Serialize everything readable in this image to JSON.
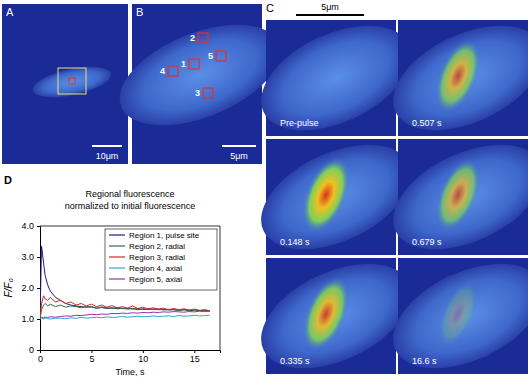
{
  "chart_data": {
    "type": "line",
    "panel_label": "D",
    "title": "Regional fluorescence",
    "subtitle": "normalized to initial fluorescence",
    "x_label": "Time, s",
    "y_label": "F/F₀",
    "x": [
      0,
      0.15,
      0.35,
      0.5,
      0.75,
      1,
      1.5,
      2,
      2.5,
      3,
      3.5,
      4,
      4.5,
      5,
      5.5,
      6,
      6.5,
      7,
      7.5,
      8,
      8.5,
      9,
      9.5,
      10,
      10.5,
      11,
      11.5,
      12,
      12.5,
      13,
      13.5,
      14,
      14.5,
      15,
      15.5,
      16,
      16.5
    ],
    "series": [
      {
        "name": "Region 1, pulse site",
        "color": "#1f1f7a",
        "values": [
          1.0,
          3.35,
          2.8,
          2.4,
          2.1,
          1.9,
          1.7,
          1.6,
          1.5,
          1.45,
          1.42,
          1.4,
          1.38,
          1.4,
          1.35,
          1.37,
          1.34,
          1.36,
          1.33,
          1.35,
          1.32,
          1.34,
          1.3,
          1.33,
          1.31,
          1.32,
          1.3,
          1.31,
          1.29,
          1.3,
          1.28,
          1.3,
          1.27,
          1.29,
          1.27,
          1.28,
          1.26
        ]
      },
      {
        "name": "Region 2, radial",
        "color": "#2f6f3f",
        "values": [
          1.0,
          1.3,
          1.45,
          1.5,
          1.42,
          1.48,
          1.4,
          1.45,
          1.38,
          1.42,
          1.4,
          1.36,
          1.4,
          1.38,
          1.35,
          1.39,
          1.36,
          1.34,
          1.37,
          1.33,
          1.35,
          1.32,
          1.34,
          1.3,
          1.33,
          1.31,
          1.32,
          1.29,
          1.31,
          1.3,
          1.28,
          1.3,
          1.28,
          1.29,
          1.27,
          1.28,
          1.27
        ]
      },
      {
        "name": "Region 3, radial",
        "color": "#d62728",
        "values": [
          1.0,
          1.5,
          1.75,
          1.65,
          1.6,
          1.7,
          1.55,
          1.6,
          1.5,
          1.55,
          1.45,
          1.5,
          1.42,
          1.48,
          1.4,
          1.45,
          1.38,
          1.43,
          1.36,
          1.4,
          1.35,
          1.42,
          1.34,
          1.38,
          1.33,
          1.36,
          1.32,
          1.35,
          1.3,
          1.34,
          1.3,
          1.33,
          1.29,
          1.32,
          1.28,
          1.3,
          1.27
        ]
      },
      {
        "name": "Region 4, axial",
        "color": "#33a6cc",
        "values": [
          1.0,
          1.02,
          1.0,
          1.03,
          1.01,
          1.0,
          1.02,
          1.03,
          1.01,
          1.04,
          1.02,
          1.05,
          1.03,
          1.04,
          1.06,
          1.04,
          1.07,
          1.05,
          1.06,
          1.08,
          1.06,
          1.07,
          1.09,
          1.07,
          1.08,
          1.1,
          1.08,
          1.09,
          1.1,
          1.08,
          1.11,
          1.09,
          1.1,
          1.12,
          1.1,
          1.11,
          1.12
        ]
      },
      {
        "name": "Region 5, axial",
        "color": "#a0309a",
        "values": [
          1.0,
          1.05,
          1.04,
          1.06,
          1.05,
          1.07,
          1.06,
          1.08,
          1.1,
          1.09,
          1.12,
          1.11,
          1.13,
          1.15,
          1.14,
          1.16,
          1.15,
          1.18,
          1.17,
          1.19,
          1.18,
          1.2,
          1.19,
          1.21,
          1.2,
          1.22,
          1.21,
          1.23,
          1.22,
          1.24,
          1.23,
          1.22,
          1.24,
          1.23,
          1.25,
          1.24,
          1.25
        ]
      }
    ],
    "xlim": [
      0,
      17.5
    ],
    "xticks": [
      0,
      5,
      10,
      15
    ],
    "ylim": [
      0,
      4
    ],
    "yticks": [
      0,
      {
        "value": 1,
        "label": "1.0"
      },
      {
        "value": 2,
        "label": "2.0"
      },
      {
        "value": 3,
        "label": "3.0"
      },
      {
        "value": 4,
        "label": "4.0"
      }
    ],
    "legend": "upper right",
    "grid": false
  },
  "images": {
    "panel_a": {
      "label": "A",
      "scale_bar": "10μm"
    },
    "panel_b": {
      "label": "B",
      "scale_bar": "5μm",
      "regions": [
        "1",
        "2",
        "3",
        "4",
        "5"
      ]
    },
    "panel_c": {
      "label": "C",
      "scale_bar": "5μm",
      "frames": [
        "Pre-pulse",
        "0.507 s",
        "0.148 s",
        "0.679 s",
        "0.335 s",
        "16.6 s"
      ]
    }
  }
}
